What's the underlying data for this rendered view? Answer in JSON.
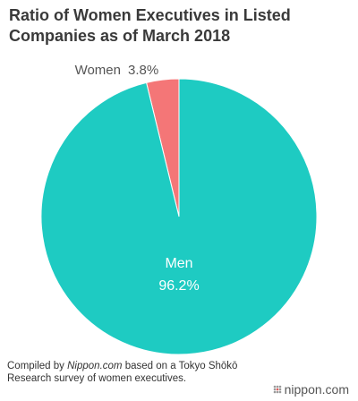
{
  "title_lines": [
    "Ratio of Women Executives in Listed",
    "Companies as of March 2018"
  ],
  "footer": {
    "prefix": "Compiled by ",
    "source": "Nippon.com",
    "rest": " based on a Tokyo Shōkō Research survey of women executives."
  },
  "logo": {
    "text": "nippon.com"
  },
  "colors": {
    "men": "#1ecbc2",
    "women": "#f47677",
    "text": "#333333"
  },
  "chart_data": {
    "type": "pie",
    "title": "Ratio of Women Executives in Listed Companies as of March 2018",
    "slices": [
      {
        "label": "Women",
        "value": 3.8,
        "display": "3.8%"
      },
      {
        "label": "Men",
        "value": 96.2,
        "display": "96.2%"
      }
    ],
    "start": "12 o'clock",
    "direction": "counterclockwise"
  }
}
